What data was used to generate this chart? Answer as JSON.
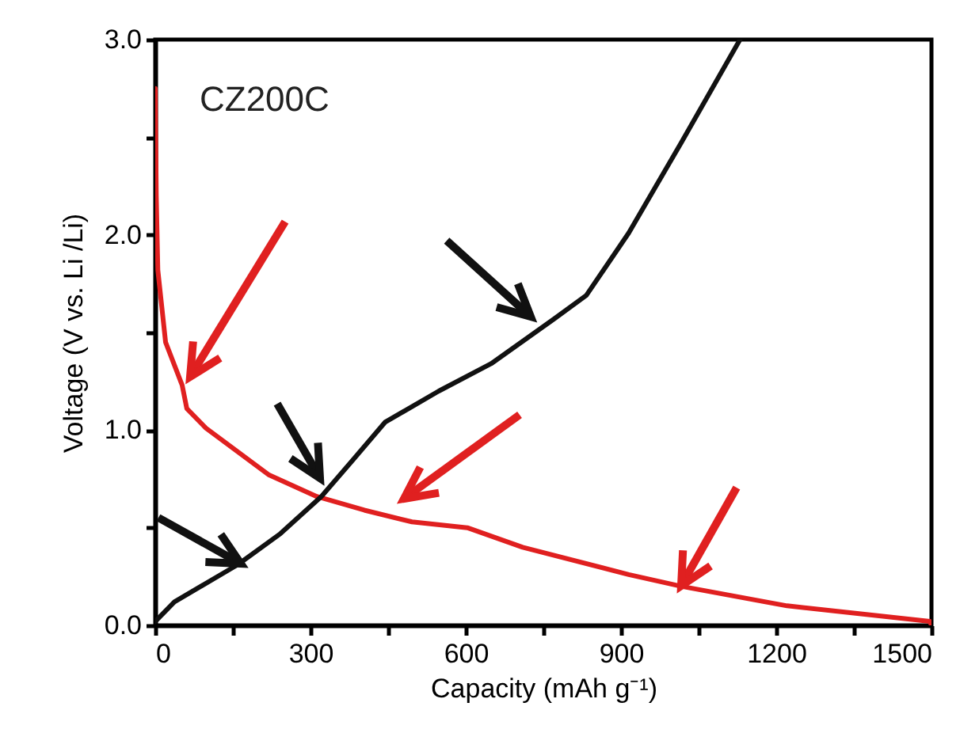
{
  "chart_data": {
    "type": "line",
    "xlabel": "Capacity (mAh g⁻¹)",
    "ylabel": "Voltage (V vs. Li /Li)",
    "annotations": [
      "CZ200C"
    ],
    "xlim": [
      0,
      1500
    ],
    "ylim": [
      0,
      3
    ],
    "xticks": [
      0,
      {
        "value": 150,
        "label": null
      },
      300,
      {
        "value": 450,
        "label": null
      },
      600,
      {
        "value": 750,
        "label": null
      },
      900,
      {
        "value": 1050,
        "label": null
      },
      1200,
      {
        "value": 1350,
        "label": null
      },
      1500
    ],
    "yticks": [
      {
        "value": 0,
        "label": "0.0"
      },
      {
        "value": 0.5,
        "label": null
      },
      {
        "value": 1,
        "label": "1.0"
      },
      {
        "value": 1.5,
        "label": null
      },
      {
        "value": 2,
        "label": "2.0"
      },
      {
        "value": 2.5,
        "label": null
      },
      {
        "value": 3,
        "label": "3.0"
      }
    ],
    "grid": false,
    "marker": "none",
    "line_style": "solid",
    "series": [
      {
        "color": "#e02020",
        "x": [
          0,
          2,
          5,
          20,
          52,
          61,
          98,
          220,
          312,
          404,
          496,
          603,
          710,
          915,
          1016,
          1221,
          1497,
          1500
        ],
        "values": [
          2.75,
          2.2,
          1.82,
          1.45,
          1.23,
          1.11,
          1.01,
          0.77,
          0.66,
          0.59,
          0.53,
          0.5,
          0.4,
          0.26,
          0.2,
          0.1,
          0.02,
          0
        ]
      },
      {
        "color": "#111111",
        "x": [
          0,
          37,
          159,
          242,
          321,
          383,
          444,
          548,
          649,
          771,
          833,
          915,
          1016,
          1130
        ],
        "values": [
          0.02,
          0.12,
          0.31,
          0.47,
          0.66,
          0.85,
          1.04,
          1.2,
          1.34,
          1.57,
          1.69,
          2.01,
          2.47,
          3.0
        ]
      }
    ]
  }
}
